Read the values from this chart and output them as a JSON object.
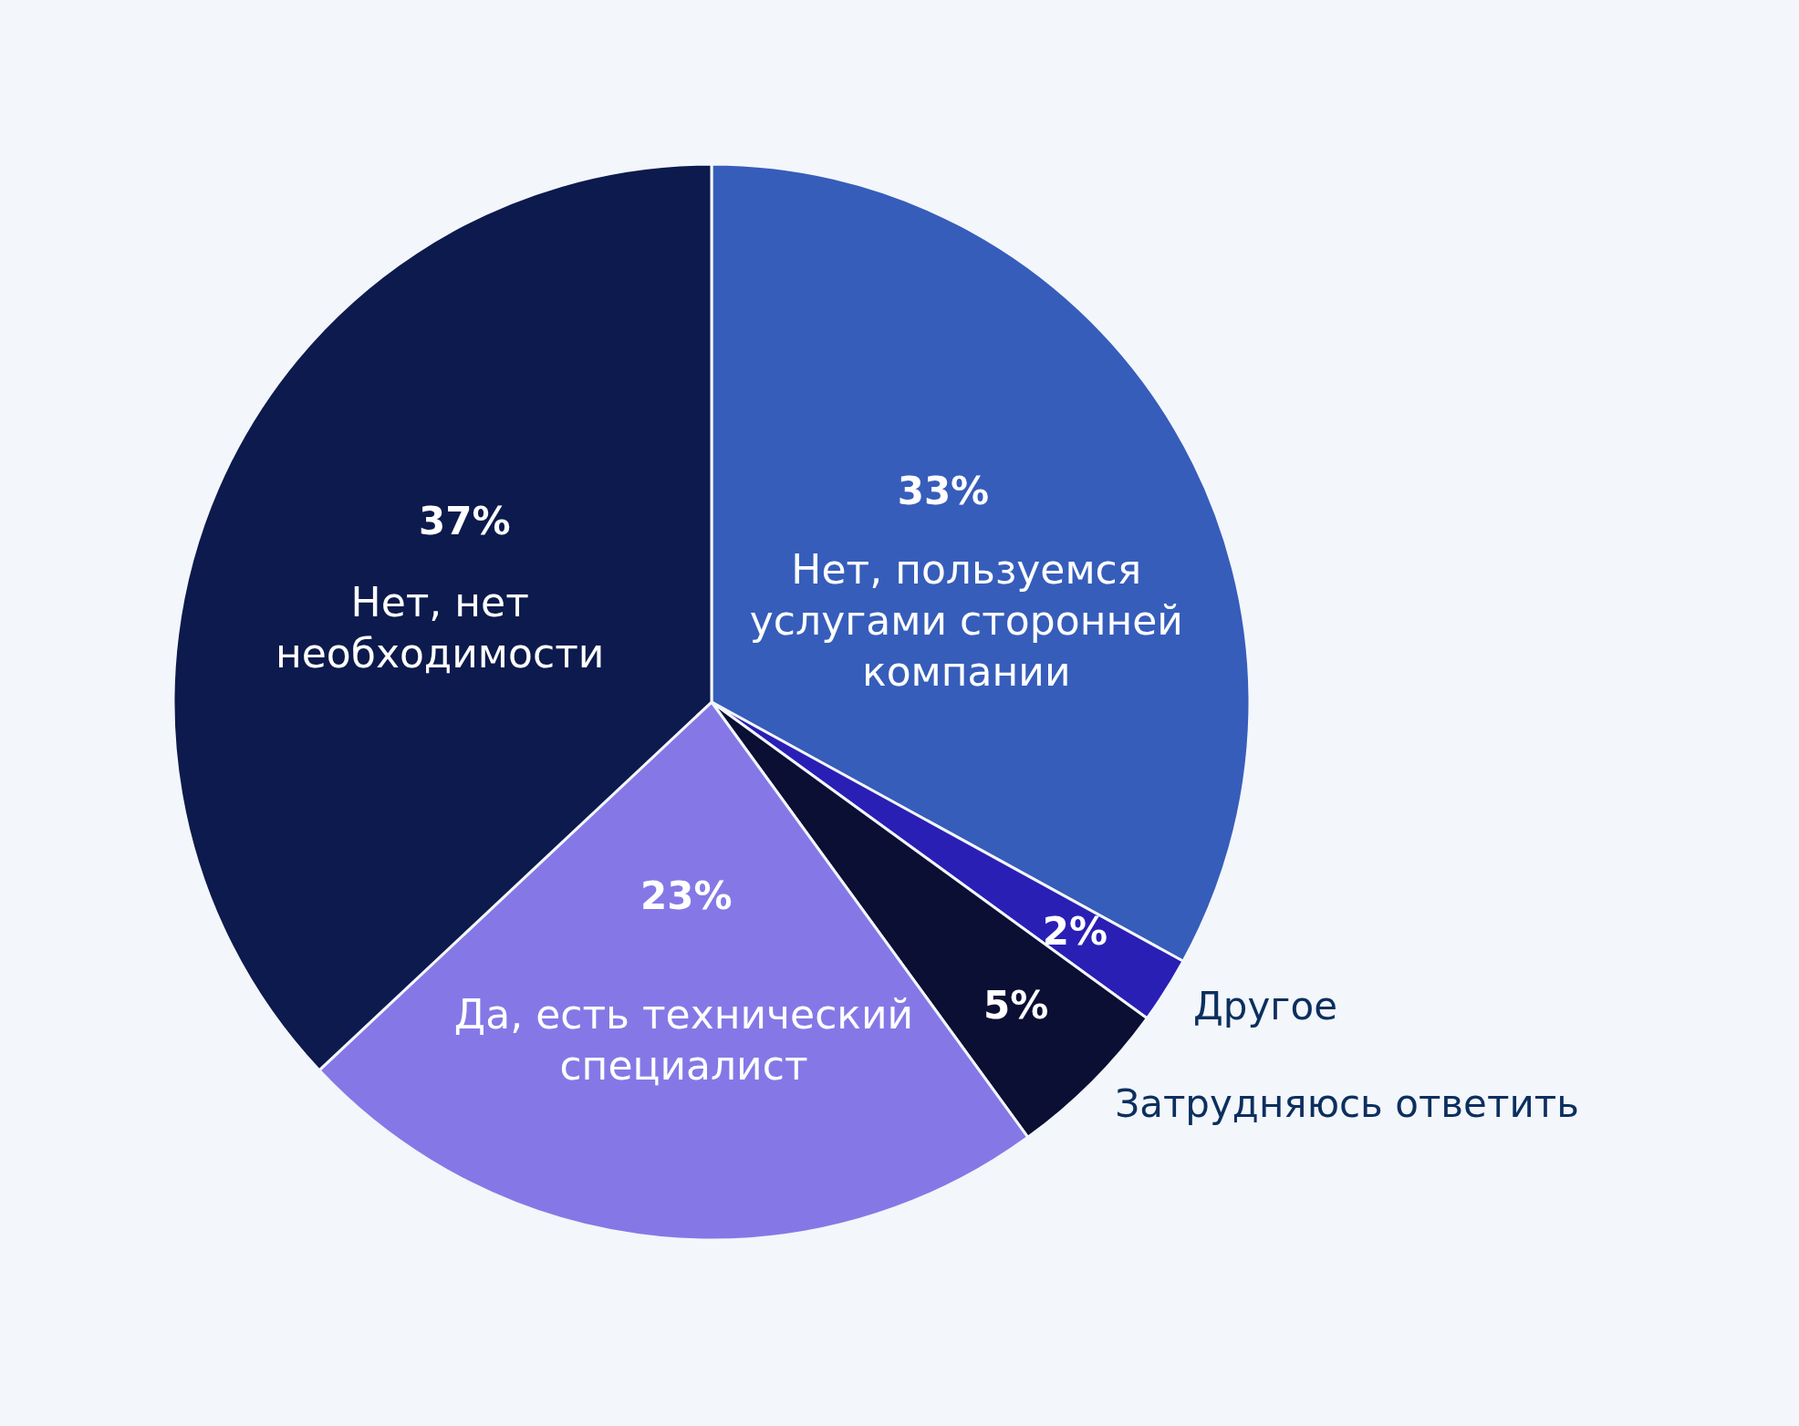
{
  "chart_data": {
    "type": "pie",
    "categories": [
      "Нет, пользуемся услугами сторонней компании",
      "Другое",
      "Затрудняюсь ответить",
      "Да, есть технический специалист",
      "Нет, нет необходимости"
    ],
    "values": [
      33,
      2,
      5,
      23,
      37
    ],
    "value_labels": [
      "33%",
      "2%",
      "5%",
      "23%",
      "37%"
    ],
    "colors": [
      "#365dba",
      "#2a1fb5",
      "#0a0f33",
      "#8578e6",
      "#0c1a4d"
    ],
    "legend": false
  }
}
